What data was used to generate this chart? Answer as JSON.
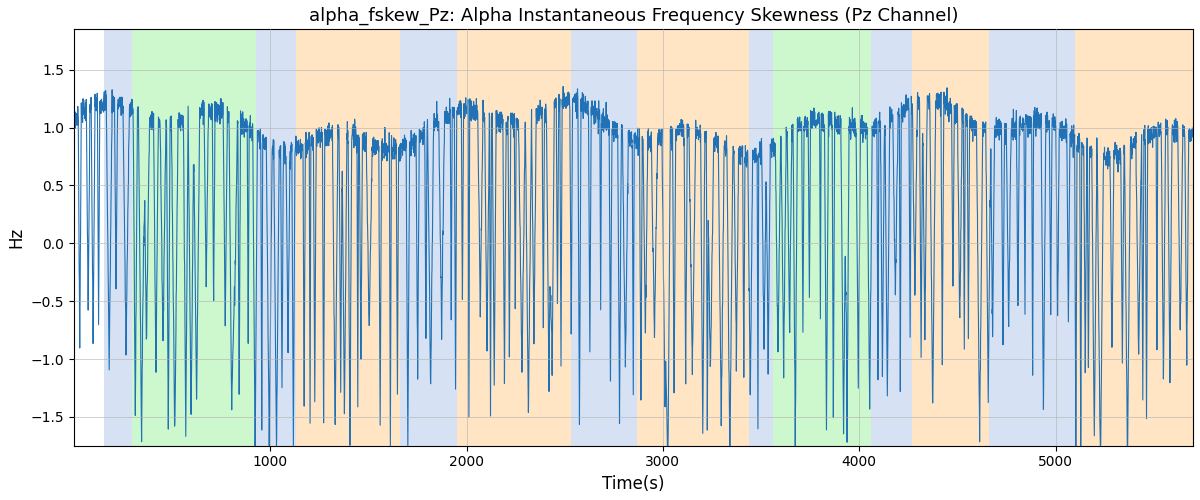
{
  "title": "alpha_fskew_Pz: Alpha Instantaneous Frequency Skewness (Pz Channel)",
  "xlabel": "Time(s)",
  "ylabel": "Hz",
  "xlim": [
    0,
    5700
  ],
  "ylim": [
    -1.75,
    1.85
  ],
  "yticks": [
    -1.5,
    -1.0,
    -0.5,
    0.0,
    0.5,
    1.0,
    1.5
  ],
  "line_color": "#2071b5",
  "line_width": 0.8,
  "bg_color": "#ffffff",
  "grid_color": "#b0b0b0",
  "regions": [
    {
      "start": 155,
      "end": 295,
      "color": "#aec6e8",
      "alpha": 0.5
    },
    {
      "start": 295,
      "end": 930,
      "color": "#90ee90",
      "alpha": 0.45
    },
    {
      "start": 930,
      "end": 1130,
      "color": "#aec6e8",
      "alpha": 0.5
    },
    {
      "start": 1130,
      "end": 1660,
      "color": "#ffd59e",
      "alpha": 0.6
    },
    {
      "start": 1660,
      "end": 1950,
      "color": "#aec6e8",
      "alpha": 0.5
    },
    {
      "start": 1950,
      "end": 2530,
      "color": "#ffd59e",
      "alpha": 0.6
    },
    {
      "start": 2530,
      "end": 2870,
      "color": "#aec6e8",
      "alpha": 0.5
    },
    {
      "start": 2870,
      "end": 3440,
      "color": "#ffd59e",
      "alpha": 0.6
    },
    {
      "start": 3440,
      "end": 3560,
      "color": "#aec6e8",
      "alpha": 0.5
    },
    {
      "start": 3560,
      "end": 4060,
      "color": "#90ee90",
      "alpha": 0.45
    },
    {
      "start": 4060,
      "end": 4270,
      "color": "#aec6e8",
      "alpha": 0.5
    },
    {
      "start": 4270,
      "end": 4660,
      "color": "#ffd59e",
      "alpha": 0.6
    },
    {
      "start": 4660,
      "end": 5100,
      "color": "#aec6e8",
      "alpha": 0.5
    },
    {
      "start": 5100,
      "end": 5700,
      "color": "#ffd59e",
      "alpha": 0.6
    }
  ],
  "seed": 7,
  "title_fontsize": 13,
  "xticks": [
    1000,
    2000,
    3000,
    4000,
    5000
  ]
}
